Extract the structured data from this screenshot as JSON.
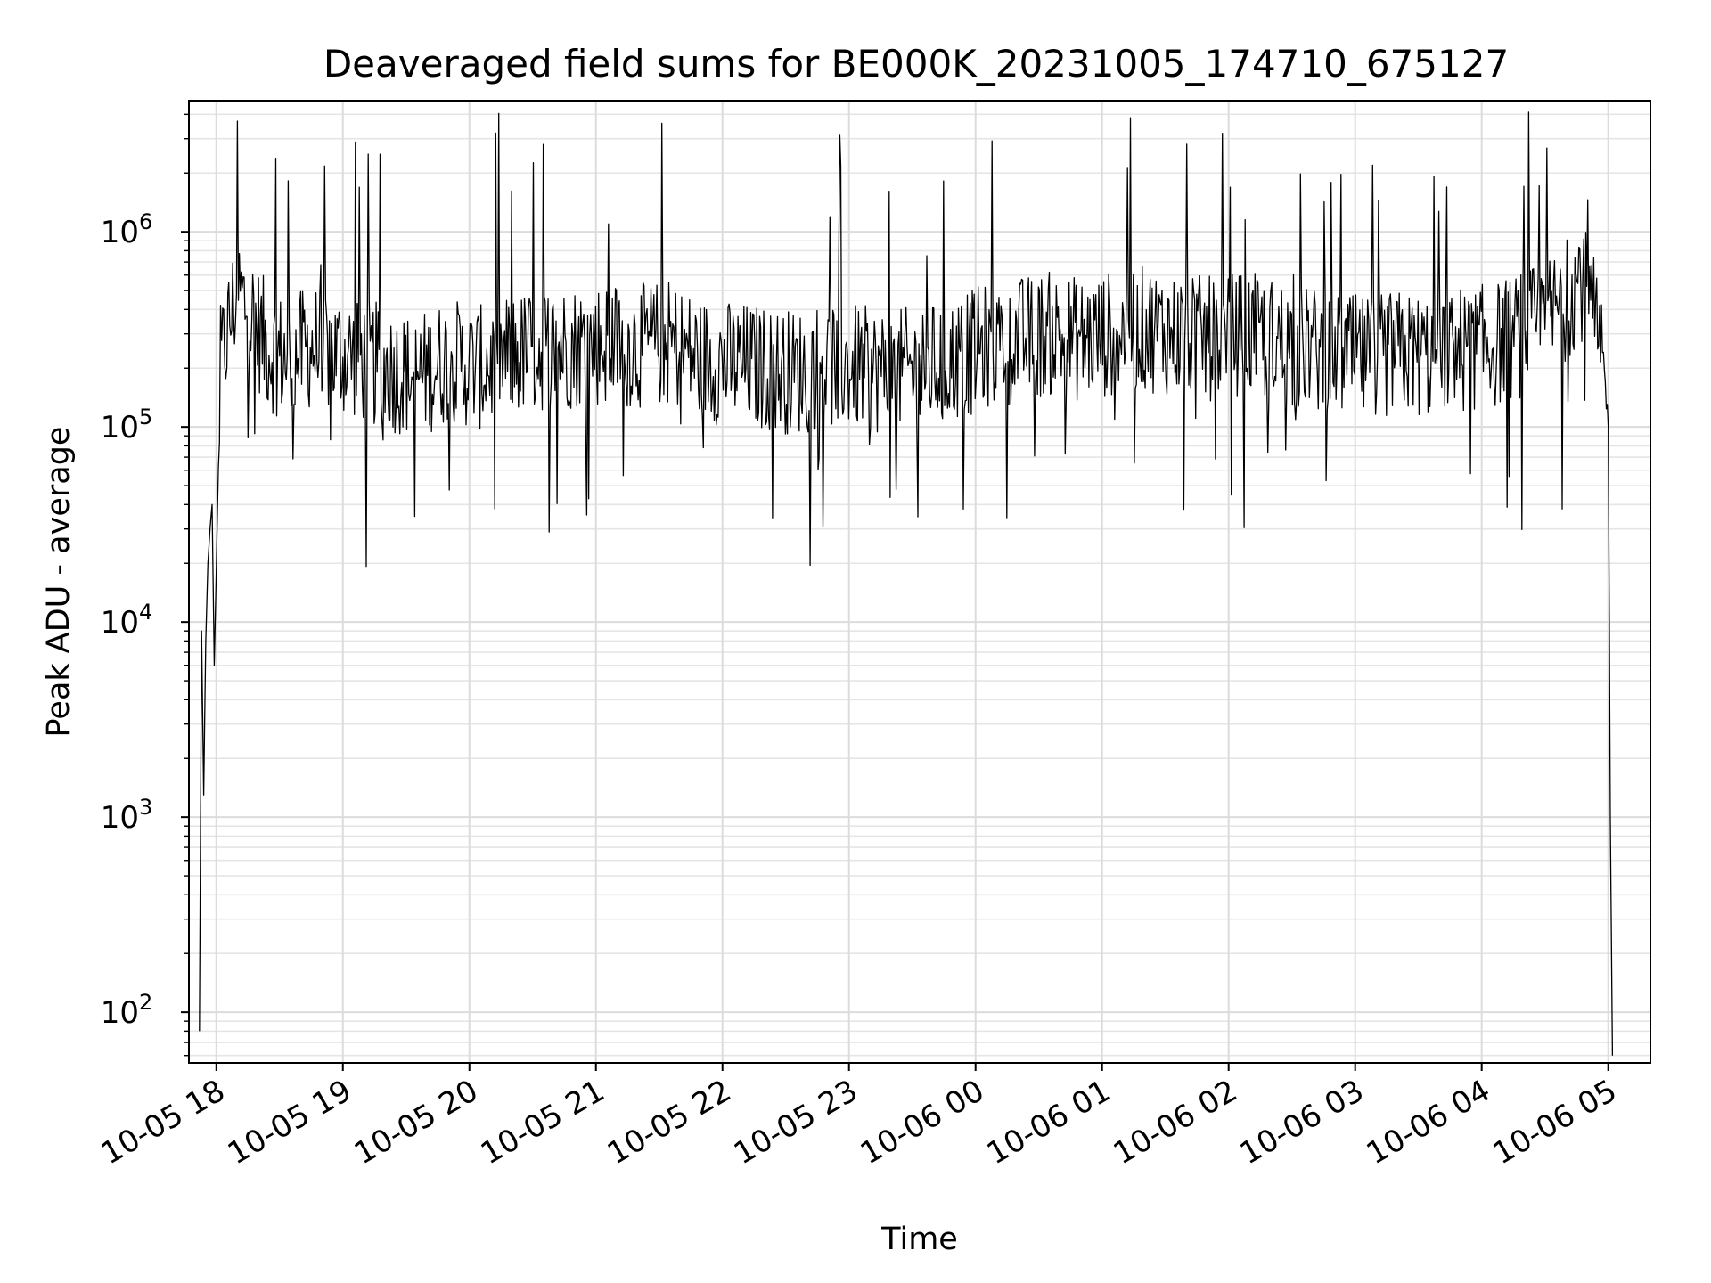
{
  "chart_data": {
    "type": "line",
    "title": "Deaveraged field sums for BE000K_20231005_174710_675127",
    "xlabel": "Time",
    "ylabel": "Peak ADU - average",
    "yscale": "log",
    "ylim": [
      55,
      4700000
    ],
    "xlim": [
      "2023-10-05 17:47",
      "2023-10-06 05:20"
    ],
    "grid": true,
    "line_color": "#000000",
    "x_ticks": [
      {
        "x": "2023-10-05 18:00",
        "label": "10-05 18"
      },
      {
        "x": "2023-10-05 19:00",
        "label": "10-05 19"
      },
      {
        "x": "2023-10-05 20:00",
        "label": "10-05 20"
      },
      {
        "x": "2023-10-05 21:00",
        "label": "10-05 21"
      },
      {
        "x": "2023-10-05 22:00",
        "label": "10-05 22"
      },
      {
        "x": "2023-10-05 23:00",
        "label": "10-05 23"
      },
      {
        "x": "2023-10-06 00:00",
        "label": "10-06 00"
      },
      {
        "x": "2023-10-06 01:00",
        "label": "10-06 01"
      },
      {
        "x": "2023-10-06 02:00",
        "label": "10-06 02"
      },
      {
        "x": "2023-10-06 03:00",
        "label": "10-06 03"
      },
      {
        "x": "2023-10-06 04:00",
        "label": "10-06 04"
      },
      {
        "x": "2023-10-06 05:00",
        "label": "10-06 05"
      }
    ],
    "y_ticks": [
      {
        "value": 100,
        "base": "10",
        "exp": "2"
      },
      {
        "value": 1000,
        "base": "10",
        "exp": "3"
      },
      {
        "value": 10000,
        "base": "10",
        "exp": "4"
      },
      {
        "value": 100000,
        "base": "10",
        "exp": "5"
      },
      {
        "value": 1000000,
        "base": "10",
        "exp": "6"
      }
    ],
    "series": [
      {
        "x": [
          "2023-10-05 17:52",
          "2023-10-05 17:53",
          "2023-10-05 17:54",
          "2023-10-05 17:55",
          "2023-10-05 17:56",
          "2023-10-05 17:57",
          "2023-10-05 17:58",
          "2023-10-05 17:59",
          "2023-10-05 18:02",
          "2023-10-05 18:05",
          "2023-10-05 18:10",
          "2023-10-05 18:15",
          "2023-10-05 18:25",
          "2023-10-05 18:35",
          "2023-10-05 18:45",
          "2023-10-05 18:55",
          "2023-10-05 19:05",
          "2023-10-05 19:20",
          "2023-10-05 19:35",
          "2023-10-05 19:50",
          "2023-10-05 20:05",
          "2023-10-05 20:20",
          "2023-10-05 20:35",
          "2023-10-05 20:50",
          "2023-10-05 21:05",
          "2023-10-05 21:20",
          "2023-10-05 21:35",
          "2023-10-05 21:50",
          "2023-10-05 22:05",
          "2023-10-05 22:20",
          "2023-10-05 22:35",
          "2023-10-05 22:50",
          "2023-10-05 23:05",
          "2023-10-05 23:20",
          "2023-10-05 23:35",
          "2023-10-05 23:50",
          "2023-10-06 00:05",
          "2023-10-06 00:20",
          "2023-10-06 00:35",
          "2023-10-06 00:50",
          "2023-10-06 01:05",
          "2023-10-06 01:20",
          "2023-10-06 01:35",
          "2023-10-06 01:50",
          "2023-10-06 02:05",
          "2023-10-06 02:20",
          "2023-10-06 02:35",
          "2023-10-06 02:50",
          "2023-10-06 03:05",
          "2023-10-06 03:20",
          "2023-10-06 03:35",
          "2023-10-06 03:50",
          "2023-10-06 04:05",
          "2023-10-06 04:20",
          "2023-10-06 04:30",
          "2023-10-06 04:40",
          "2023-10-06 04:47",
          "2023-10-06 04:55",
          "2023-10-06 05:00",
          "2023-10-06 05:01",
          "2023-10-06 05:02"
        ],
        "y": [
          80,
          9000,
          1300,
          8000,
          20000,
          30000,
          40000,
          6000,
          200000,
          300000,
          500000,
          400000,
          250000,
          220000,
          260000,
          240000,
          230000,
          200000,
          180000,
          220000,
          200000,
          230000,
          250000,
          260000,
          270000,
          260000,
          270000,
          220000,
          210000,
          200000,
          190000,
          210000,
          200000,
          190000,
          200000,
          220000,
          260000,
          280000,
          300000,
          280000,
          300000,
          320000,
          300000,
          280000,
          300000,
          280000,
          250000,
          240000,
          220000,
          240000,
          230000,
          250000,
          260000,
          300000,
          350000,
          450000,
          600000,
          300000,
          100000,
          1000,
          60
        ]
      }
    ]
  }
}
